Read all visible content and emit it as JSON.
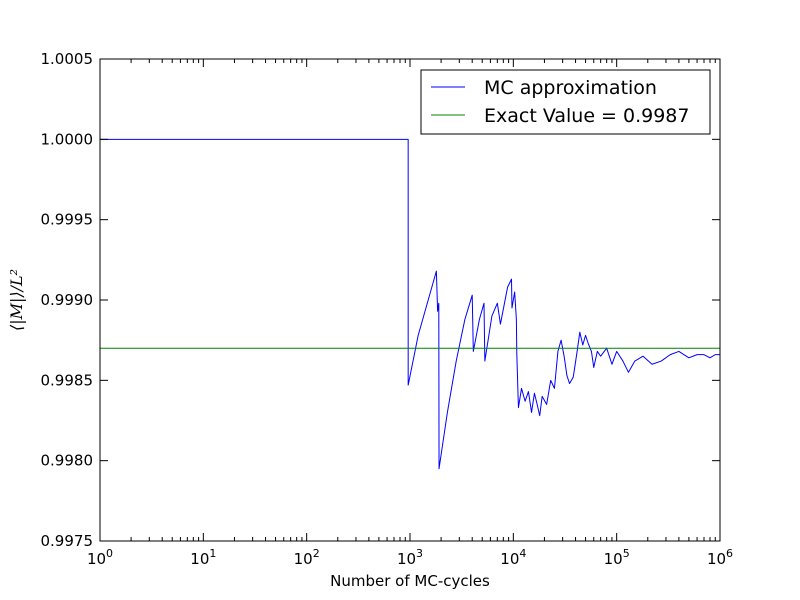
{
  "chart_data": {
    "type": "line",
    "title": "",
    "xlabel": "Number of MC-cycles",
    "ylabel": "⟨|M|⟩/L²",
    "xscale": "log",
    "xlim": [
      1,
      1000000
    ],
    "ylim": [
      0.9975,
      1.0005
    ],
    "grid": false,
    "legend_position": "top-right",
    "x_ticks": [
      {
        "base": "10",
        "exp": "0"
      },
      {
        "base": "10",
        "exp": "1"
      },
      {
        "base": "10",
        "exp": "2"
      },
      {
        "base": "10",
        "exp": "3"
      },
      {
        "base": "10",
        "exp": "4"
      },
      {
        "base": "10",
        "exp": "5"
      },
      {
        "base": "10",
        "exp": "6"
      }
    ],
    "y_ticks": [
      "0.9975",
      "0.9980",
      "0.9985",
      "0.9990",
      "0.9995",
      "1.0000",
      "1.0005"
    ],
    "series": [
      {
        "name": "MC approximation",
        "color": "#0000ff",
        "points": [
          [
            1,
            1.0
          ],
          [
            900,
            1.0
          ],
          [
            960,
            1.0
          ],
          [
            960,
            0.99847
          ],
          [
            1200,
            0.99878
          ],
          [
            1500,
            0.999
          ],
          [
            1800,
            0.99918
          ],
          [
            1850,
            0.99893
          ],
          [
            1900,
            0.99898
          ],
          [
            1910,
            0.99795
          ],
          [
            2300,
            0.9983
          ],
          [
            2800,
            0.99862
          ],
          [
            3400,
            0.99888
          ],
          [
            4000,
            0.99903
          ],
          [
            4100,
            0.99868
          ],
          [
            4700,
            0.99888
          ],
          [
            5200,
            0.99898
          ],
          [
            5300,
            0.99862
          ],
          [
            6200,
            0.9989
          ],
          [
            7000,
            0.99898
          ],
          [
            7500,
            0.99885
          ],
          [
            8800,
            0.99908
          ],
          [
            9600,
            0.99913
          ],
          [
            9700,
            0.99895
          ],
          [
            10300,
            0.99905
          ],
          [
            10700,
            0.99888
          ],
          [
            10800,
            0.99867
          ],
          [
            11200,
            0.99833
          ],
          [
            12000,
            0.99845
          ],
          [
            13000,
            0.99837
          ],
          [
            14000,
            0.99843
          ],
          [
            15000,
            0.9983
          ],
          [
            16000,
            0.99842
          ],
          [
            17000,
            0.99835
          ],
          [
            18000,
            0.99828
          ],
          [
            19000,
            0.9984
          ],
          [
            21000,
            0.99835
          ],
          [
            23000,
            0.9985
          ],
          [
            25000,
            0.99845
          ],
          [
            27000,
            0.99868
          ],
          [
            29000,
            0.99875
          ],
          [
            31000,
            0.99865
          ],
          [
            33000,
            0.99853
          ],
          [
            35000,
            0.99848
          ],
          [
            38000,
            0.99852
          ],
          [
            41000,
            0.99866
          ],
          [
            44000,
            0.9988
          ],
          [
            47000,
            0.99872
          ],
          [
            50000,
            0.99878
          ],
          [
            53000,
            0.99873
          ],
          [
            57000,
            0.99868
          ],
          [
            60000,
            0.99858
          ],
          [
            65000,
            0.99868
          ],
          [
            70000,
            0.99865
          ],
          [
            80000,
            0.9987
          ],
          [
            90000,
            0.9986
          ],
          [
            100000,
            0.99868
          ],
          [
            115000,
            0.99862
          ],
          [
            130000,
            0.99855
          ],
          [
            150000,
            0.99862
          ],
          [
            180000,
            0.99865
          ],
          [
            220000,
            0.9986
          ],
          [
            270000,
            0.99862
          ],
          [
            330000,
            0.99866
          ],
          [
            400000,
            0.99868
          ],
          [
            500000,
            0.99864
          ],
          [
            600000,
            0.99866
          ],
          [
            700000,
            0.99866
          ],
          [
            800000,
            0.99864
          ],
          [
            900000,
            0.99866
          ],
          [
            1000000,
            0.99866
          ]
        ]
      },
      {
        "name": "Exact Value = 0.9987",
        "color": "#008000",
        "points": [
          [
            1,
            0.9987
          ],
          [
            1000000,
            0.9987
          ]
        ]
      }
    ]
  }
}
